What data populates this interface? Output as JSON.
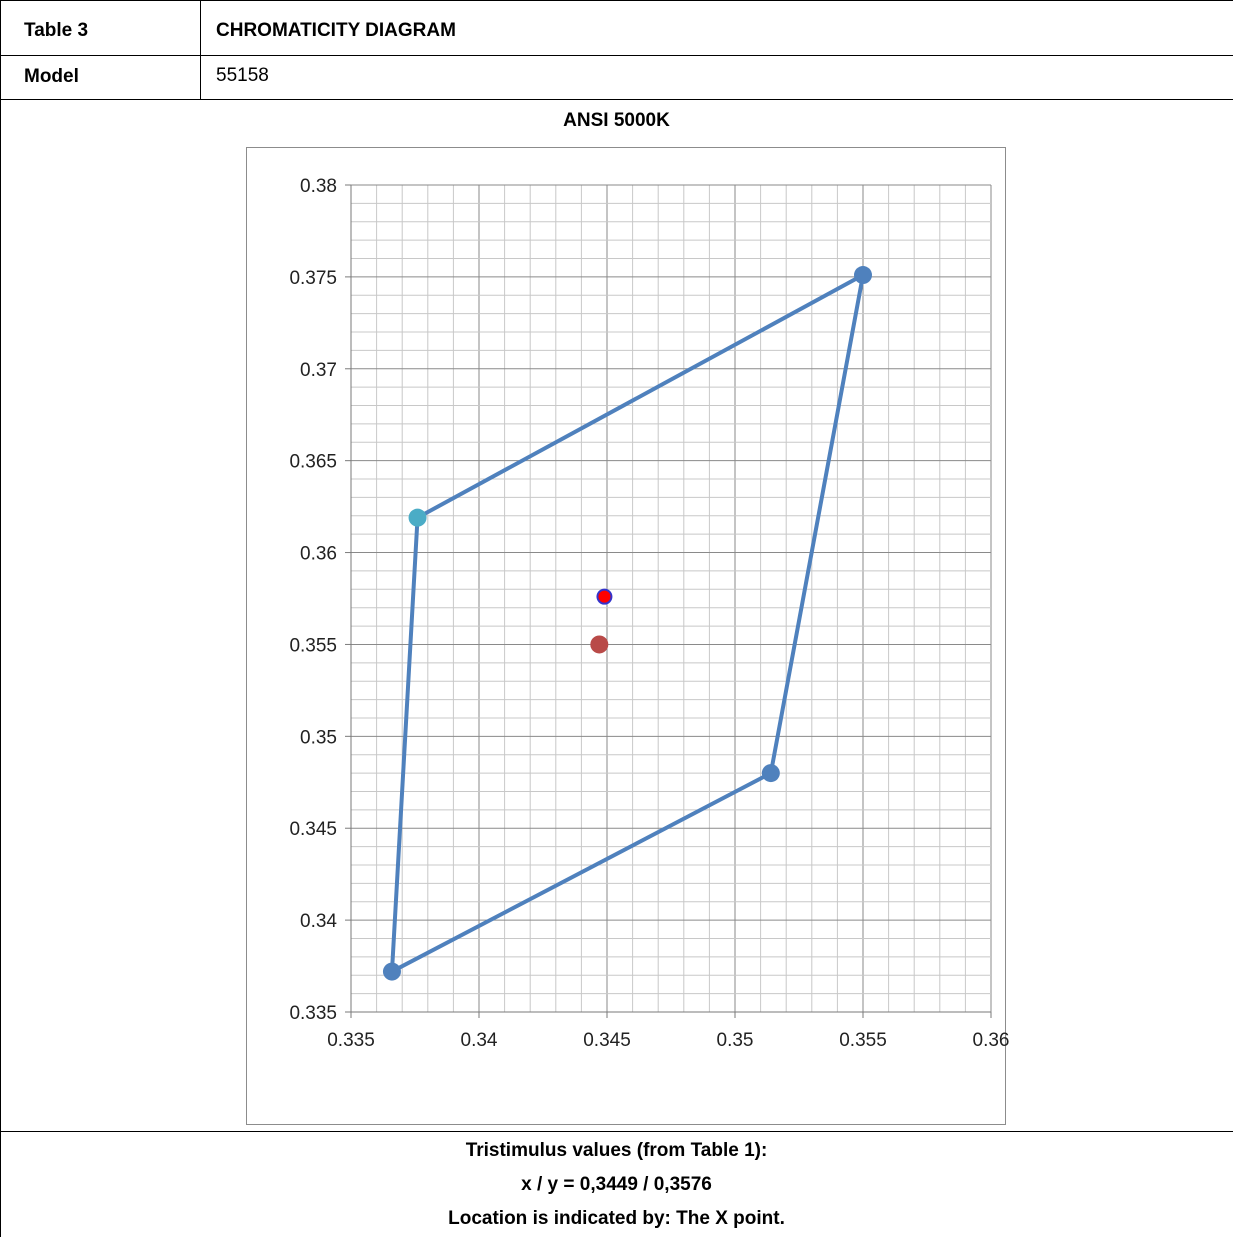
{
  "table": {
    "row1": {
      "label": "Table 3",
      "value": "CHROMATICITY DIAGRAM"
    },
    "row2": {
      "label": "Model",
      "value": "55158"
    }
  },
  "footer": {
    "line1": "Tristimulus values (from Table 1):",
    "line2": "x / y =  0,3449 / 0,3576",
    "line3": "Location is indicated by: The X point."
  },
  "chart_data": {
    "type": "scatter",
    "title": "ANSI 5000K",
    "xlabel": "",
    "ylabel": "",
    "xlim": [
      0.335,
      0.36
    ],
    "ylim": [
      0.335,
      0.38
    ],
    "grid": true,
    "x_ticks": [
      "0.335",
      "0.34",
      "0.345",
      "0.35",
      "0.355",
      "0.36"
    ],
    "y_ticks": [
      "0.335",
      "0.34",
      "0.345",
      "0.35",
      "0.355",
      "0.36",
      "0.365",
      "0.37",
      "0.375",
      "0.38"
    ],
    "series": [
      {
        "kind": "polygon",
        "color": "#4f81bd",
        "points": [
          {
            "x": 0.3376,
            "y": 0.3619
          },
          {
            "x": 0.355,
            "y": 0.3751
          },
          {
            "x": 0.3514,
            "y": 0.348
          },
          {
            "x": 0.3366,
            "y": 0.3372
          }
        ],
        "point_colors": [
          "#4bacc6",
          "#4f81bd",
          "#4f81bd",
          "#4f81bd"
        ]
      },
      {
        "kind": "point",
        "color": "#ff0000",
        "stroke": "#3333cc",
        "points": [
          {
            "x": 0.3449,
            "y": 0.3576
          }
        ]
      },
      {
        "kind": "point",
        "color": "#b94a48",
        "points": [
          {
            "x": 0.3447,
            "y": 0.355
          }
        ]
      }
    ]
  }
}
